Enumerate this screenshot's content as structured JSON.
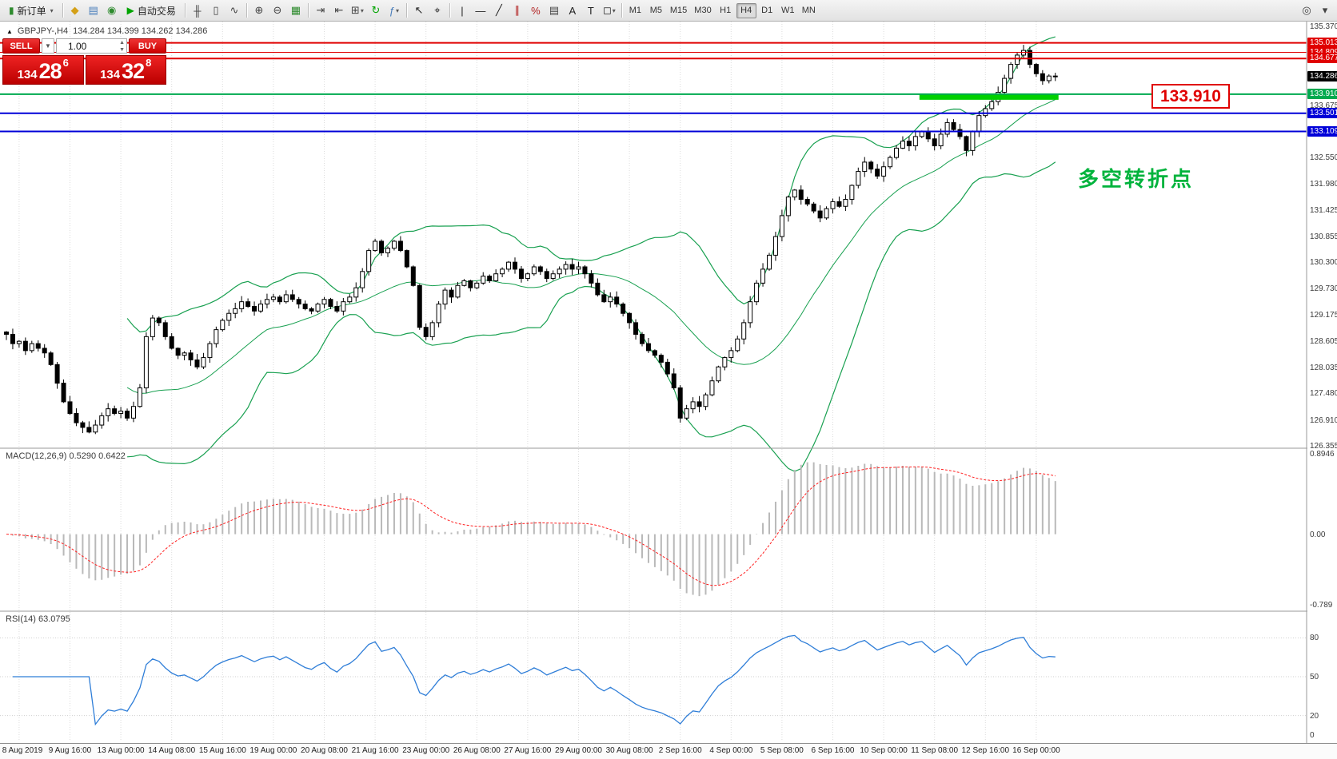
{
  "toolbar": {
    "new_order": "新订单",
    "auto_trading": "自动交易",
    "timeframes": [
      "M1",
      "M5",
      "M15",
      "M30",
      "H1",
      "H4",
      "D1",
      "W1",
      "MN"
    ],
    "active_timeframe": "H4",
    "items": [
      {
        "t": "btn",
        "name": "new-order-button",
        "icon": "new-order-icon",
        "glyph": "▮",
        "gc": "#2e8b2e",
        "label": "新订单",
        "caret": true
      },
      {
        "t": "sep"
      },
      {
        "t": "ico",
        "name": "market-watch-button",
        "icon": "market-watch-icon",
        "glyph": "◆",
        "gc": "#d4a017"
      },
      {
        "t": "ico",
        "name": "data-window-button",
        "icon": "data-window-icon",
        "glyph": "▤",
        "gc": "#4a7ebb"
      },
      {
        "t": "ico",
        "name": "navigator-button",
        "icon": "navigator-icon",
        "glyph": "◉",
        "gc": "#2e8b2e"
      },
      {
        "t": "btn",
        "name": "auto-trading-button",
        "icon": "play-icon",
        "glyph": "▶",
        "gc": "#00a400",
        "label": "自动交易"
      },
      {
        "t": "sep"
      },
      {
        "t": "ico",
        "name": "bar-chart-button",
        "icon": "ohlc-bars-icon",
        "glyph": "╫",
        "gc": "#444"
      },
      {
        "t": "ico",
        "name": "candlestick-chart-button",
        "icon": "candlestick-icon",
        "glyph": "▯",
        "gc": "#444"
      },
      {
        "t": "ico",
        "name": "line-chart-button",
        "icon": "line-chart-icon",
        "glyph": "∿",
        "gc": "#444"
      },
      {
        "t": "sep"
      },
      {
        "t": "ico",
        "name": "zoom-in-button",
        "icon": "zoom-in-icon",
        "glyph": "⊕",
        "gc": "#444"
      },
      {
        "t": "ico",
        "name": "zoom-out-button",
        "icon": "zoom-out-icon",
        "glyph": "⊖",
        "gc": "#444"
      },
      {
        "t": "ico",
        "name": "tile-windows-button",
        "icon": "tile-windows-icon",
        "glyph": "▦",
        "gc": "#2e8b2e"
      },
      {
        "t": "sep"
      },
      {
        "t": "ico",
        "name": "auto-scroll-button",
        "icon": "auto-scroll-icon",
        "glyph": "⇥",
        "gc": "#444"
      },
      {
        "t": "ico",
        "name": "chart-shift-button",
        "icon": "chart-shift-icon",
        "glyph": "⇤",
        "gc": "#444"
      },
      {
        "t": "ico",
        "name": "new-chart-button",
        "icon": "new-chart-icon",
        "glyph": "⊞",
        "gc": "#444",
        "caret": true
      },
      {
        "t": "ico",
        "name": "profiles-button",
        "icon": "profiles-icon",
        "glyph": "↻",
        "gc": "#00a400"
      },
      {
        "t": "ico",
        "name": "indicators-button",
        "icon": "indicators-icon",
        "glyph": "ƒ",
        "gc": "#4a7ebb",
        "caret": true
      },
      {
        "t": "sep"
      },
      {
        "t": "ico",
        "name": "cursor-button",
        "icon": "cursor-icon",
        "glyph": "↖",
        "gc": "#222"
      },
      {
        "t": "ico",
        "name": "crosshair-button",
        "icon": "crosshair-icon",
        "glyph": "⌖",
        "gc": "#222"
      },
      {
        "t": "sep"
      },
      {
        "t": "ico",
        "name": "vertical-line-button",
        "icon": "vertical-line-icon",
        "glyph": "|",
        "gc": "#222"
      },
      {
        "t": "ico",
        "name": "horizontal-line-button",
        "icon": "horizontal-line-icon",
        "glyph": "—",
        "gc": "#222"
      },
      {
        "t": "ico",
        "name": "trendline-button",
        "icon": "trendline-icon",
        "glyph": "╱",
        "gc": "#222"
      },
      {
        "t": "ico",
        "name": "channel-button",
        "icon": "channel-icon",
        "glyph": "∥",
        "gc": "#b22222"
      },
      {
        "t": "ico",
        "name": "fibonacci-button",
        "icon": "fibonacci-icon",
        "glyph": "%",
        "gc": "#b22222"
      },
      {
        "t": "ico",
        "name": "grid-button",
        "icon": "grid-icon",
        "glyph": "▤",
        "gc": "#444"
      },
      {
        "t": "ico",
        "name": "text-button",
        "icon": "text-icon",
        "glyph": "A",
        "gc": "#222"
      },
      {
        "t": "ico",
        "name": "text-label-button",
        "icon": "text-label-icon",
        "glyph": "T",
        "gc": "#222"
      },
      {
        "t": "ico",
        "name": "shapes-button",
        "icon": "shapes-icon",
        "glyph": "◻",
        "gc": "#222",
        "caret": true
      },
      {
        "t": "sep"
      },
      {
        "t": "tfs"
      },
      {
        "t": "spring"
      },
      {
        "t": "ico",
        "name": "search-button",
        "icon": "search-icon",
        "glyph": "◎",
        "gc": "#444"
      },
      {
        "t": "ico",
        "name": "options-button",
        "icon": "options-icon",
        "glyph": "▾",
        "gc": "#444"
      }
    ]
  },
  "header": {
    "symbol": "GBPJPY-,H4",
    "ohlc": "134.284 134.399 134.262 134.286"
  },
  "trade_panel": {
    "sell_label": "SELL",
    "buy_label": "BUY",
    "volume": "1.00",
    "sell_big": "134",
    "sell_pips": "28",
    "sell_sup": "6",
    "buy_big": "134",
    "buy_pips": "32",
    "buy_sup": "8"
  },
  "indicators": {
    "macd_label": "MACD(12,26,9) 0.5290 0.6422",
    "rsi_label": "RSI(14) 63.0795"
  },
  "annotations": {
    "level_label": "133.910",
    "note": "多空转折点"
  },
  "axis": {
    "price_ticks": [
      "135.370",
      "133.675",
      "132.550",
      "131.980",
      "131.425",
      "130.855",
      "130.300",
      "129.730",
      "129.175",
      "128.605",
      "128.035",
      "127.480",
      "126.910",
      "126.355"
    ],
    "line_labels": [
      {
        "text": "135.013",
        "price": 135.013,
        "color": "#e00000"
      },
      {
        "text": "134.809",
        "price": 134.809,
        "color": "#e00000"
      },
      {
        "text": "134.677",
        "price": 134.677,
        "color": "#e00000"
      },
      {
        "text": "134.286",
        "price": 134.286,
        "color": "#000000"
      },
      {
        "text": "133.910",
        "price": 133.91,
        "color": "#00a94f"
      },
      {
        "text": "133.501",
        "price": 133.501,
        "color": "#0000d8"
      },
      {
        "text": "133.109",
        "price": 133.109,
        "color": "#0000d8"
      }
    ],
    "macd_ticks": [
      {
        "text": "0.8946",
        "v": 0.8946
      },
      {
        "text": "0.00",
        "v": 0.0
      },
      {
        "text": "-0.789",
        "v": -0.789
      }
    ],
    "rsi_ticks": [
      {
        "text": "80",
        "v": 80
      },
      {
        "text": "50",
        "v": 50
      },
      {
        "text": "20",
        "v": 20
      },
      {
        "text": "0",
        "v": 0
      }
    ],
    "time_ticks": [
      "8 Aug 2019",
      "9 Aug 16:00",
      "13 Aug 00:00",
      "14 Aug 08:00",
      "15 Aug 16:00",
      "19 Aug 00:00",
      "20 Aug 08:00",
      "21 Aug 16:00",
      "23 Aug 00:00",
      "26 Aug 08:00",
      "27 Aug 16:00",
      "29 Aug 00:00",
      "30 Aug 08:00",
      "2 Sep 16:00",
      "4 Sep 00:00",
      "5 Sep 08:00",
      "6 Sep 16:00",
      "10 Sep 00:00",
      "11 Sep 08:00",
      "12 Sep 16:00",
      "16 Sep 00:00"
    ]
  },
  "chart_data": [
    {
      "type": "candlestick",
      "title": "GBPJPY H4",
      "ylim": [
        126.32,
        135.47
      ],
      "closes": [
        128.75,
        128.55,
        128.6,
        128.4,
        128.55,
        128.45,
        128.35,
        128.1,
        127.7,
        127.3,
        127.05,
        126.85,
        126.75,
        126.65,
        126.8,
        127.0,
        127.15,
        127.05,
        127.1,
        126.95,
        127.2,
        127.6,
        128.7,
        129.1,
        129.0,
        128.7,
        128.45,
        128.3,
        128.35,
        128.2,
        128.05,
        128.25,
        128.55,
        128.85,
        129.05,
        129.2,
        129.3,
        129.45,
        129.35,
        129.25,
        129.4,
        129.5,
        129.55,
        129.45,
        129.6,
        129.5,
        129.4,
        129.3,
        129.25,
        129.4,
        129.5,
        129.35,
        129.25,
        129.45,
        129.55,
        129.75,
        130.1,
        130.55,
        130.75,
        130.5,
        130.6,
        130.75,
        130.55,
        130.2,
        129.8,
        128.9,
        128.7,
        129.0,
        129.4,
        129.7,
        129.55,
        129.8,
        129.9,
        129.75,
        129.85,
        130.0,
        129.9,
        130.05,
        130.15,
        130.3,
        130.15,
        129.95,
        130.05,
        130.2,
        130.1,
        129.95,
        130.05,
        130.15,
        130.25,
        130.15,
        130.2,
        130.05,
        129.85,
        129.6,
        129.45,
        129.55,
        129.4,
        129.2,
        129.0,
        128.75,
        128.55,
        128.4,
        128.3,
        128.15,
        127.9,
        127.6,
        126.95,
        127.15,
        127.3,
        127.2,
        127.45,
        127.75,
        128.05,
        128.25,
        128.4,
        128.65,
        129.0,
        129.45,
        129.85,
        130.15,
        130.45,
        130.85,
        131.3,
        131.7,
        131.85,
        131.65,
        131.55,
        131.4,
        131.25,
        131.45,
        131.6,
        131.5,
        131.65,
        131.95,
        132.25,
        132.45,
        132.3,
        132.15,
        132.35,
        132.55,
        132.75,
        132.9,
        132.8,
        133.0,
        133.1,
        132.95,
        132.8,
        133.05,
        133.3,
        133.15,
        133.0,
        132.7,
        133.1,
        133.45,
        133.6,
        133.75,
        133.95,
        134.25,
        134.55,
        134.75,
        134.85,
        134.55,
        134.35,
        134.2,
        134.3,
        134.286
      ],
      "bollinger": {
        "period": 20,
        "deviation": 2,
        "color": "#18a050"
      },
      "hlines": [
        {
          "price": 135.013,
          "color": "#e00000",
          "w": 2
        },
        {
          "price": 134.809,
          "color": "#e00000",
          "w": 1
        },
        {
          "price": 134.677,
          "color": "#e00000",
          "w": 2
        },
        {
          "price": 133.91,
          "color": "#00a94f",
          "w": 2
        },
        {
          "price": 133.501,
          "color": "#0000d8",
          "w": 2
        },
        {
          "price": 133.109,
          "color": "#0000d8",
          "w": 2
        }
      ],
      "highlight_zone": {
        "price": 133.91,
        "from_index": 144,
        "to_index": 165,
        "color": "#00d000",
        "thickness": 7
      }
    },
    {
      "type": "macd",
      "params": {
        "fast": 12,
        "slow": 26,
        "signal": 9
      },
      "current": {
        "main": 0.529,
        "signal": 0.6422
      },
      "ylim": [
        -0.85,
        0.95
      ],
      "hist_color": "#b9b9b9",
      "signal_color": "#ff2020"
    },
    {
      "type": "rsi",
      "period": 14,
      "current": 63.0795,
      "levels": [
        80,
        50,
        20
      ],
      "ylim": [
        0,
        100
      ],
      "line_color": "#2f7ed8"
    }
  ]
}
